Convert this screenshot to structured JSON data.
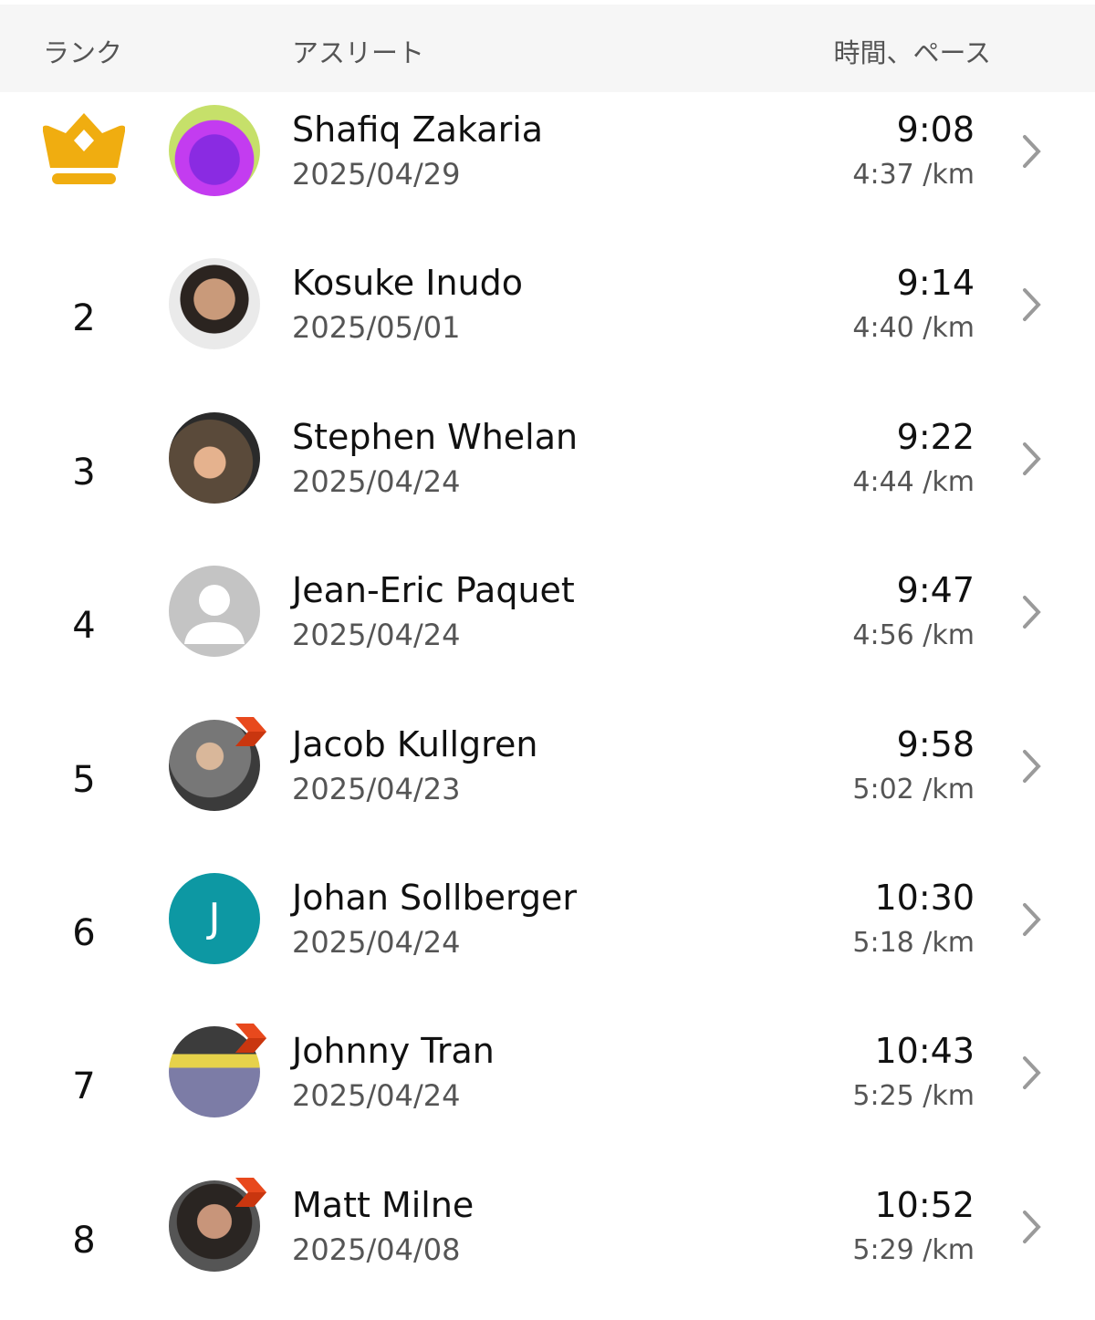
{
  "header": {
    "rank": "ランク",
    "athlete": "アスリート",
    "time_pace": "時間、ペース"
  },
  "colors": {
    "crown": "#f0ad10",
    "badge": "#e8491d",
    "chevron": "#9a9a9a"
  },
  "rows": [
    {
      "rank": "1",
      "rank_icon": "crown-icon",
      "name": "Shafiq Zakaria",
      "date": "2025/04/29",
      "time": "9:08",
      "pace": "4:37 /km",
      "avatar": "photo",
      "badge": false
    },
    {
      "rank": "2",
      "name": "Kosuke Inudo",
      "date": "2025/05/01",
      "time": "9:14",
      "pace": "4:40 /km",
      "avatar": "photo",
      "badge": false
    },
    {
      "rank": "3",
      "name": "Stephen Whelan",
      "date": "2025/04/24",
      "time": "9:22",
      "pace": "4:44 /km",
      "avatar": "photo",
      "badge": false
    },
    {
      "rank": "4",
      "name": "Jean-Eric Paquet",
      "date": "2025/04/24",
      "time": "9:47",
      "pace": "4:56 /km",
      "avatar": "default-user",
      "badge": false
    },
    {
      "rank": "5",
      "name": "Jacob Kullgren",
      "date": "2025/04/23",
      "time": "9:58",
      "pace": "5:02 /km",
      "avatar": "photo",
      "badge": true
    },
    {
      "rank": "6",
      "name": "Johan Sollberger",
      "date": "2025/04/24",
      "time": "10:30",
      "pace": "5:18 /km",
      "avatar": "initial",
      "initial": "J",
      "badge": false
    },
    {
      "rank": "7",
      "name": "Johnny Tran",
      "date": "2025/04/24",
      "time": "10:43",
      "pace": "5:25 /km",
      "avatar": "photo",
      "badge": true
    },
    {
      "rank": "8",
      "name": "Matt Milne",
      "date": "2025/04/08",
      "time": "10:52",
      "pace": "5:29 /km",
      "avatar": "photo",
      "badge": true
    }
  ]
}
